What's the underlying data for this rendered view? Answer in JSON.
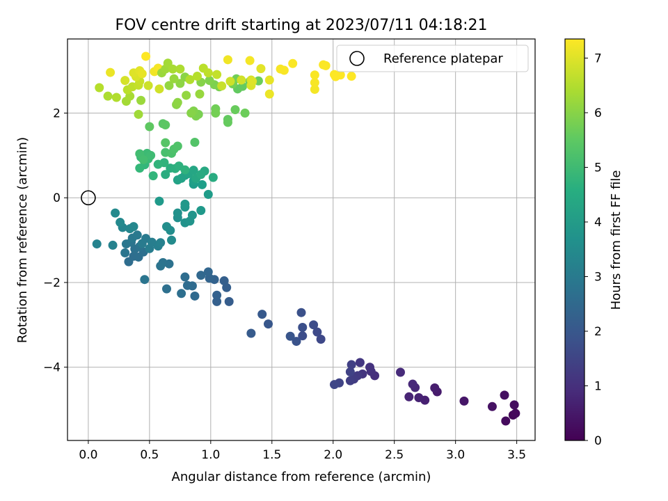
{
  "chart_data": {
    "type": "scatter",
    "title": "FOV centre drift starting at 2023/07/11 04:18:21",
    "xlabel": "Angular distance from reference (arcmin)",
    "ylabel": "Rotation from reference (arcmin)",
    "xlim": [
      -0.17,
      3.65
    ],
    "ylim": [
      -5.73,
      3.75
    ],
    "xticks": [
      0.0,
      0.5,
      1.0,
      1.5,
      2.0,
      2.5,
      3.0,
      3.5
    ],
    "xtick_labels": [
      "0.0",
      "0.5",
      "1.0",
      "1.5",
      "2.0",
      "2.5",
      "3.0",
      "3.5"
    ],
    "yticks": [
      -4,
      -2,
      0,
      2
    ],
    "ytick_labels": [
      "−4",
      "−2",
      "0",
      "2"
    ],
    "grid": true,
    "legend": {
      "placement": "top-right",
      "entries": [
        {
          "label": "Reference platepar",
          "marker": "open-circle"
        }
      ]
    },
    "reference_point": {
      "x": 0.0,
      "y": 0.0
    },
    "colorbar": {
      "label": "Hours from first FF file",
      "colormap": "viridis",
      "range": [
        0,
        7.35
      ],
      "ticks": [
        0,
        1,
        2,
        3,
        4,
        5,
        6,
        7
      ],
      "tick_labels": [
        "0",
        "1",
        "2",
        "3",
        "4",
        "5",
        "6",
        "7"
      ]
    },
    "points": [
      [
        3.47,
        -5.13,
        0.1
      ],
      [
        3.49,
        -5.09,
        0.15
      ],
      [
        3.41,
        -5.27,
        0.2
      ],
      [
        3.48,
        -4.89,
        0.25
      ],
      [
        3.4,
        -4.66,
        0.3
      ],
      [
        3.3,
        -4.93,
        0.35
      ],
      [
        3.07,
        -4.8,
        0.45
      ],
      [
        2.85,
        -4.58,
        0.55
      ],
      [
        2.83,
        -4.49,
        0.6
      ],
      [
        2.75,
        -4.78,
        0.65
      ],
      [
        2.7,
        -4.72,
        0.7
      ],
      [
        2.62,
        -4.7,
        0.75
      ],
      [
        2.67,
        -4.48,
        0.8
      ],
      [
        2.65,
        -4.4,
        0.85
      ],
      [
        2.55,
        -4.12,
        0.9
      ],
      [
        2.34,
        -4.2,
        1.0
      ],
      [
        2.31,
        -4.1,
        1.05
      ],
      [
        2.3,
        -4.0,
        1.1
      ],
      [
        2.24,
        -4.16,
        1.15
      ],
      [
        2.22,
        -3.89,
        1.2
      ],
      [
        2.2,
        -4.2,
        1.25
      ],
      [
        2.17,
        -4.28,
        1.3
      ],
      [
        2.14,
        -4.32,
        1.35
      ],
      [
        2.15,
        -3.94,
        1.4
      ],
      [
        2.14,
        -4.11,
        1.45
      ],
      [
        2.05,
        -4.37,
        1.5
      ],
      [
        2.01,
        -4.41,
        1.55
      ],
      [
        1.9,
        -3.34,
        1.6
      ],
      [
        1.87,
        -3.17,
        1.65
      ],
      [
        1.84,
        -3.0,
        1.7
      ],
      [
        1.75,
        -3.26,
        1.75
      ],
      [
        1.75,
        -3.06,
        1.8
      ],
      [
        1.74,
        -2.71,
        1.85
      ],
      [
        1.7,
        -3.39,
        1.9
      ],
      [
        1.65,
        -3.27,
        1.95
      ],
      [
        1.47,
        -2.98,
        2.0
      ],
      [
        1.42,
        -2.75,
        2.05
      ],
      [
        1.33,
        -3.2,
        2.1
      ],
      [
        1.15,
        -2.45,
        2.15
      ],
      [
        1.13,
        -2.12,
        2.18
      ],
      [
        1.11,
        -1.96,
        2.2
      ],
      [
        1.05,
        -2.45,
        2.23
      ],
      [
        1.05,
        -2.3,
        2.26
      ],
      [
        1.03,
        -1.93,
        2.3
      ],
      [
        0.99,
        -1.9,
        2.35
      ],
      [
        0.98,
        -1.75,
        2.4
      ],
      [
        0.92,
        -1.83,
        2.45
      ],
      [
        0.87,
        -2.32,
        2.5
      ],
      [
        0.85,
        -2.08,
        2.55
      ],
      [
        0.81,
        -2.07,
        2.58
      ],
      [
        0.79,
        -1.87,
        2.62
      ],
      [
        0.76,
        -2.26,
        2.66
      ],
      [
        0.64,
        -2.15,
        2.7
      ],
      [
        0.66,
        -1.56,
        2.75
      ],
      [
        0.61,
        -1.53,
        2.78
      ],
      [
        0.59,
        -1.61,
        2.82
      ],
      [
        0.46,
        -1.93,
        2.86
      ],
      [
        0.33,
        -1.51,
        2.6
      ],
      [
        0.37,
        -1.38,
        2.63
      ],
      [
        0.41,
        -1.4,
        2.67
      ],
      [
        0.45,
        -1.28,
        2.7
      ],
      [
        0.38,
        -1.21,
        2.74
      ],
      [
        0.42,
        -1.15,
        2.78
      ],
      [
        0.35,
        -1.05,
        2.82
      ],
      [
        0.3,
        -1.3,
        2.86
      ],
      [
        0.31,
        -1.09,
        2.9
      ],
      [
        0.36,
        -0.95,
        2.94
      ],
      [
        0.4,
        -0.88,
        2.98
      ],
      [
        0.47,
        -0.96,
        3.02
      ],
      [
        0.44,
        -1.08,
        3.06
      ],
      [
        0.5,
        -1.2,
        3.1
      ],
      [
        0.52,
        -1.05,
        3.14
      ],
      [
        0.57,
        -1.14,
        3.18
      ],
      [
        0.59,
        -1.06,
        3.22
      ],
      [
        0.2,
        -1.12,
        3.26
      ],
      [
        0.07,
        -1.09,
        3.3
      ],
      [
        0.28,
        -0.7,
        3.34
      ],
      [
        0.34,
        -0.73,
        3.38
      ],
      [
        0.37,
        -0.68,
        3.42
      ],
      [
        0.26,
        -0.58,
        3.46
      ],
      [
        0.22,
        -0.36,
        3.5
      ],
      [
        0.68,
        -1.0,
        3.54
      ],
      [
        0.67,
        -0.77,
        3.58
      ],
      [
        0.64,
        -0.68,
        3.62
      ],
      [
        0.73,
        -0.47,
        3.66
      ],
      [
        0.73,
        -0.36,
        3.7
      ],
      [
        0.79,
        -0.59,
        3.74
      ],
      [
        0.83,
        -0.55,
        3.78
      ],
      [
        0.85,
        -0.41,
        3.82
      ],
      [
        0.79,
        -0.22,
        3.86
      ],
      [
        0.79,
        -0.15,
        3.9
      ],
      [
        0.92,
        -0.3,
        3.94
      ],
      [
        0.58,
        -0.08,
        3.98
      ],
      [
        0.98,
        0.08,
        4.02
      ],
      [
        0.86,
        0.32,
        4.06
      ],
      [
        0.93,
        0.31,
        4.1
      ],
      [
        0.86,
        0.4,
        4.14
      ],
      [
        0.79,
        0.53,
        4.18
      ],
      [
        0.73,
        0.42,
        4.22
      ],
      [
        0.76,
        0.46,
        4.26
      ],
      [
        0.82,
        0.57,
        4.3
      ],
      [
        0.86,
        0.65,
        4.34
      ],
      [
        0.88,
        0.46,
        4.38
      ],
      [
        0.95,
        0.63,
        4.42
      ],
      [
        0.92,
        0.55,
        4.46
      ],
      [
        1.02,
        0.48,
        4.5
      ],
      [
        0.63,
        0.55,
        4.54
      ],
      [
        0.67,
        0.7,
        4.58
      ],
      [
        0.71,
        0.69,
        4.62
      ],
      [
        0.74,
        0.75,
        4.66
      ],
      [
        0.79,
        0.66,
        4.7
      ],
      [
        0.62,
        0.83,
        4.74
      ],
      [
        0.57,
        0.79,
        4.78
      ],
      [
        0.53,
        0.52,
        4.82
      ],
      [
        0.46,
        0.78,
        4.86
      ],
      [
        0.42,
        0.7,
        4.9
      ],
      [
        0.43,
        0.96,
        4.94
      ],
      [
        0.49,
        0.92,
        4.98
      ],
      [
        0.48,
        1.05,
        5.02
      ],
      [
        0.51,
        1.0,
        5.06
      ],
      [
        0.42,
        1.04,
        5.1
      ],
      [
        0.45,
        0.9,
        5.14
      ],
      [
        0.63,
        1.07,
        5.18
      ],
      [
        0.68,
        1.05,
        5.22
      ],
      [
        0.7,
        1.15,
        5.26
      ],
      [
        0.73,
        1.22,
        5.3
      ],
      [
        0.87,
        1.31,
        5.34
      ],
      [
        0.63,
        1.3,
        5.38
      ],
      [
        0.61,
        1.75,
        5.42
      ],
      [
        0.63,
        1.72,
        5.46
      ],
      [
        0.5,
        1.68,
        5.5
      ],
      [
        1.14,
        1.85,
        5.55
      ],
      [
        1.14,
        1.78,
        5.6
      ],
      [
        1.2,
        2.08,
        5.65
      ],
      [
        1.28,
        2.0,
        5.7
      ],
      [
        1.04,
        2.1,
        5.75
      ],
      [
        1.04,
        2.0,
        5.8
      ],
      [
        0.9,
        1.97,
        5.85
      ],
      [
        0.88,
        1.93,
        5.9
      ],
      [
        0.86,
        2.05,
        5.95
      ],
      [
        0.84,
        2.0,
        6.0
      ],
      [
        0.72,
        2.2,
        6.05
      ],
      [
        0.73,
        2.25,
        6.1
      ],
      [
        0.8,
        2.42,
        6.15
      ],
      [
        0.91,
        2.45,
        6.2
      ],
      [
        0.43,
        2.3,
        6.25
      ],
      [
        0.41,
        1.97,
        6.3
      ],
      [
        0.31,
        2.28,
        6.35
      ],
      [
        0.34,
        2.4,
        6.4
      ],
      [
        0.16,
        2.4,
        6.45
      ],
      [
        0.23,
        2.37,
        6.5
      ],
      [
        0.09,
        2.6,
        6.55
      ],
      [
        0.32,
        2.55,
        6.6
      ],
      [
        0.36,
        2.62,
        6.65
      ],
      [
        0.41,
        2.66,
        6.7
      ],
      [
        0.42,
        2.75,
        6.75
      ],
      [
        0.49,
        2.65,
        6.8
      ],
      [
        0.58,
        2.57,
        6.85
      ],
      [
        0.3,
        2.77,
        6.9
      ],
      [
        0.39,
        2.86,
        6.95
      ],
      [
        0.37,
        2.95,
        7.0
      ],
      [
        0.42,
        3.0,
        7.05
      ],
      [
        0.44,
        2.93,
        7.1
      ],
      [
        0.18,
        2.96,
        7.15
      ],
      [
        0.54,
        2.98,
        7.2
      ],
      [
        0.57,
        3.06,
        7.25
      ],
      [
        0.59,
        3.02,
        7.3
      ],
      [
        0.47,
        3.34,
        7.35
      ],
      [
        1.22,
        2.57,
        5.55
      ],
      [
        1.26,
        2.63,
        5.6
      ],
      [
        1.32,
        2.75,
        5.65
      ],
      [
        1.39,
        2.76,
        5.7
      ],
      [
        1.21,
        2.81,
        5.75
      ],
      [
        1.18,
        2.69,
        5.8
      ],
      [
        1.07,
        2.62,
        5.85
      ],
      [
        1.03,
        2.67,
        5.9
      ],
      [
        0.99,
        2.77,
        5.95
      ],
      [
        0.92,
        2.73,
        6.0
      ],
      [
        0.79,
        2.85,
        6.05
      ],
      [
        0.75,
        2.7,
        6.1
      ],
      [
        0.66,
        2.65,
        6.15
      ],
      [
        0.7,
        2.81,
        6.2
      ],
      [
        0.6,
        2.95,
        6.25
      ],
      [
        0.63,
        3.04,
        6.3
      ],
      [
        0.65,
        3.18,
        6.35
      ],
      [
        0.69,
        3.04,
        6.4
      ],
      [
        0.75,
        3.04,
        6.45
      ],
      [
        0.83,
        2.79,
        6.5
      ],
      [
        0.89,
        2.87,
        6.55
      ],
      [
        0.94,
        3.06,
        6.6
      ],
      [
        0.98,
        2.95,
        6.65
      ],
      [
        1.05,
        2.91,
        6.7
      ],
      [
        1.09,
        2.64,
        6.75
      ],
      [
        1.16,
        2.75,
        6.8
      ],
      [
        1.25,
        2.78,
        6.85
      ],
      [
        1.33,
        2.78,
        6.9
      ],
      [
        1.33,
        2.65,
        6.95
      ],
      [
        1.34,
        2.75,
        7.0
      ],
      [
        1.41,
        3.05,
        7.05
      ],
      [
        1.48,
        2.78,
        7.1
      ],
      [
        1.48,
        2.45,
        7.15
      ],
      [
        1.14,
        3.26,
        7.2
      ],
      [
        1.32,
        3.24,
        7.25
      ],
      [
        1.57,
        3.04,
        7.28
      ],
      [
        1.6,
        3.01,
        7.3
      ],
      [
        1.67,
        3.17,
        7.32
      ],
      [
        1.85,
        2.56,
        7.25
      ],
      [
        1.85,
        2.72,
        7.28
      ],
      [
        1.85,
        2.9,
        7.3
      ],
      [
        1.94,
        3.12,
        7.32
      ],
      [
        1.92,
        3.14,
        7.33
      ],
      [
        2.01,
        2.91,
        7.34
      ],
      [
        2.02,
        2.86,
        7.35
      ],
      [
        2.06,
        2.9,
        7.35
      ],
      [
        2.15,
        2.87,
        7.35
      ]
    ]
  }
}
